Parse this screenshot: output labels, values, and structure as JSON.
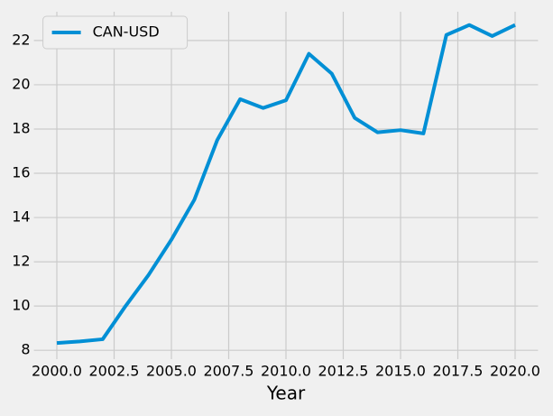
{
  "chart_data": {
    "type": "line",
    "xlabel": "Year",
    "x": [
      2000,
      2001,
      2002,
      2003,
      2004,
      2005,
      2006,
      2007,
      2008,
      2009,
      2010,
      2011,
      2012,
      2013,
      2014,
      2015,
      2016,
      2017,
      2018,
      2019,
      2020
    ],
    "series": [
      {
        "name": "CAN-USD",
        "color": "#008fd5",
        "values": [
          8.33,
          8.4,
          8.5,
          10.0,
          11.4,
          13.0,
          14.8,
          17.5,
          19.35,
          18.95,
          19.3,
          21.4,
          20.5,
          18.5,
          17.85,
          17.95,
          17.8,
          22.25,
          22.7,
          22.2,
          22.7
        ]
      }
    ],
    "xlim": [
      1999,
      2021
    ],
    "ylim": [
      7.6,
      23.3
    ],
    "xticks": [
      {
        "value": 2000,
        "label": "2000.0"
      },
      {
        "value": 2002.5,
        "label": "2002.5"
      },
      {
        "value": 2005,
        "label": "2005.0"
      },
      {
        "value": 2007.5,
        "label": "2007.5"
      },
      {
        "value": 2010,
        "label": "2010.0"
      },
      {
        "value": 2012.5,
        "label": "2012.5"
      },
      {
        "value": 2015,
        "label": "2015.0"
      },
      {
        "value": 2017.5,
        "label": "2017.5"
      },
      {
        "value": 2020,
        "label": "2020.0"
      }
    ],
    "yticks": [
      8,
      10,
      12,
      14,
      16,
      18,
      20,
      22
    ],
    "grid": true,
    "legend": "upper-left"
  }
}
